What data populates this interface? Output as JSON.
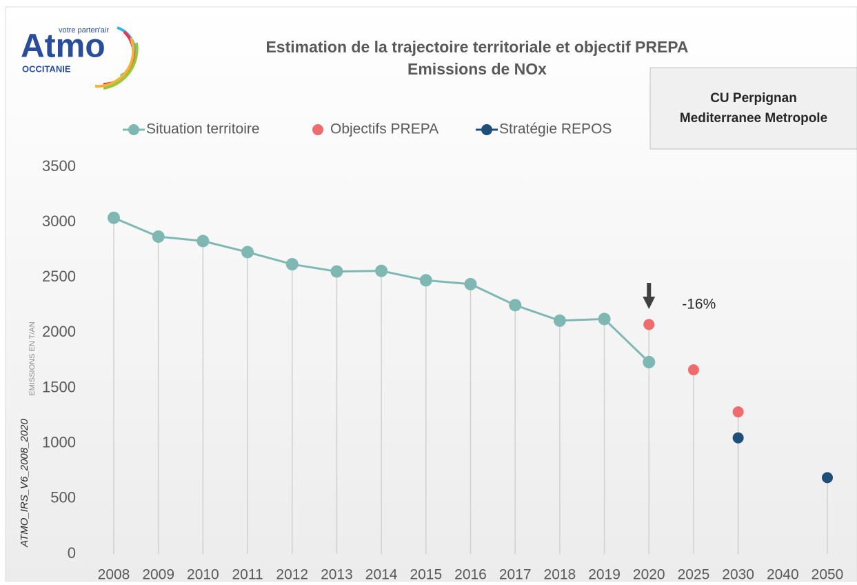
{
  "chart_data": {
    "type": "line",
    "title": "Estimation de la trajectoire territoriale et objectif PREPA",
    "subtitle": "Emissions de NOx",
    "logo": {
      "name": "Atmo",
      "tagline": "votre parten'air",
      "region": "OCCITANIE"
    },
    "territory": [
      "CU Perpignan",
      "Mediterranee Metropole"
    ],
    "y_label": "EMISSIONS  EN T/AN",
    "source_label": "ATMO_IRS_V6_2008_2020",
    "annotation": "-16%",
    "categories": [
      "2008",
      "2009",
      "2010",
      "2011",
      "2012",
      "2013",
      "2014",
      "2015",
      "2016",
      "2017",
      "2018",
      "2019",
      "2020",
      "2025",
      "2030",
      "2040",
      "2050"
    ],
    "series": [
      {
        "name": "Situation territoire",
        "color": "#7fb8b3",
        "line": true,
        "values": [
          3040,
          2870,
          2830,
          2730,
          2620,
          2555,
          2560,
          2475,
          2440,
          2250,
          2110,
          2125,
          1735,
          null,
          null,
          null,
          null
        ]
      },
      {
        "name": "Objectifs PREPA",
        "color": "#ee6b6e",
        "line": false,
        "values": [
          null,
          null,
          null,
          null,
          null,
          null,
          null,
          null,
          null,
          null,
          null,
          null,
          2075,
          1665,
          1285,
          null,
          null
        ]
      },
      {
        "name": "Stratégie REPOS",
        "color": "#1f4e79",
        "line": true,
        "values": [
          null,
          null,
          null,
          null,
          null,
          null,
          null,
          null,
          null,
          null,
          null,
          null,
          null,
          null,
          1050,
          null,
          690
        ]
      }
    ],
    "ylim": [
      0,
      3500
    ],
    "yticks": [
      0,
      500,
      1000,
      1500,
      2000,
      2500,
      3000,
      3500
    ],
    "grid": false
  }
}
